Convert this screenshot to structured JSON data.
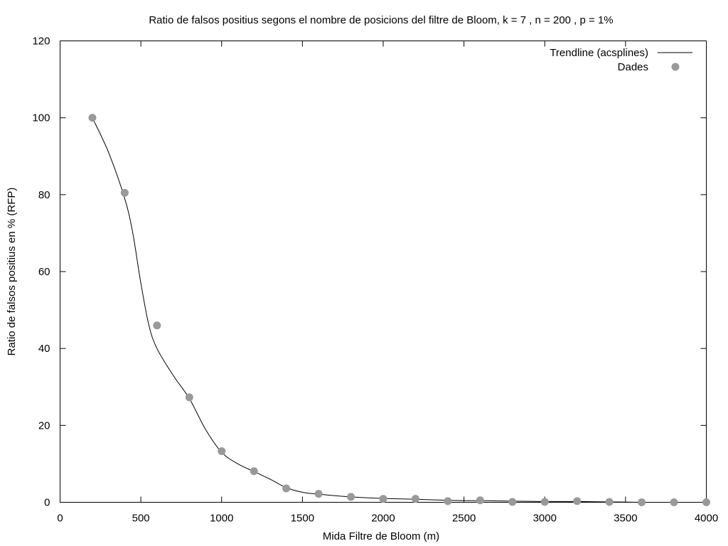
{
  "chart_data": {
    "type": "scatter",
    "title": "Ratio de falsos positius segons el nombre de posicions del filtre de Bloom, k = 7 , n = 200 , p = 1%",
    "xlabel": "Mida Filtre de Bloom (m)",
    "ylabel": "Ratio de falsos positius en % (RFP)",
    "xlim": [
      0,
      4000
    ],
    "ylim": [
      0,
      120
    ],
    "xticks": [
      "0",
      "500",
      "1000",
      "1500",
      "2000",
      "2500",
      "3000",
      "3500",
      "4000"
    ],
    "yticks": [
      "0",
      "20",
      "40",
      "60",
      "80",
      "100",
      "120"
    ],
    "grid": false,
    "legend_position": "top-right",
    "series": [
      {
        "name": "Trendline (acsplines)",
        "kind": "line",
        "color": "#000000",
        "x": [
          200,
          300,
          400,
          450,
          500,
          550,
          600,
          700,
          800,
          900,
          1000,
          1100,
          1200,
          1300,
          1400,
          1500,
          1600,
          1800,
          2000,
          2200,
          2400,
          2600,
          2800,
          3000,
          3200,
          3400,
          3600
        ],
        "y": [
          100,
          91,
          79,
          70,
          57,
          46,
          40,
          33,
          27,
          19,
          13,
          10,
          8,
          6,
          3.8,
          2.6,
          2.1,
          1.4,
          1.0,
          0.8,
          0.5,
          0.4,
          0.3,
          0.2,
          0.2,
          0.1,
          0.0
        ]
      },
      {
        "name": "Dades",
        "kind": "points",
        "color": "#999999",
        "x": [
          200,
          400,
          600,
          800,
          1000,
          1200,
          1400,
          1600,
          1800,
          2000,
          2200,
          2400,
          2600,
          2800,
          3000,
          3200,
          3400,
          3600,
          3800,
          4000
        ],
        "y": [
          100,
          80.5,
          46,
          27.3,
          13.3,
          8.1,
          3.6,
          2.2,
          1.4,
          0.9,
          0.9,
          0.3,
          0.5,
          0.1,
          0.1,
          0.3,
          0.1,
          0.0,
          0.0,
          0.0
        ]
      }
    ]
  }
}
